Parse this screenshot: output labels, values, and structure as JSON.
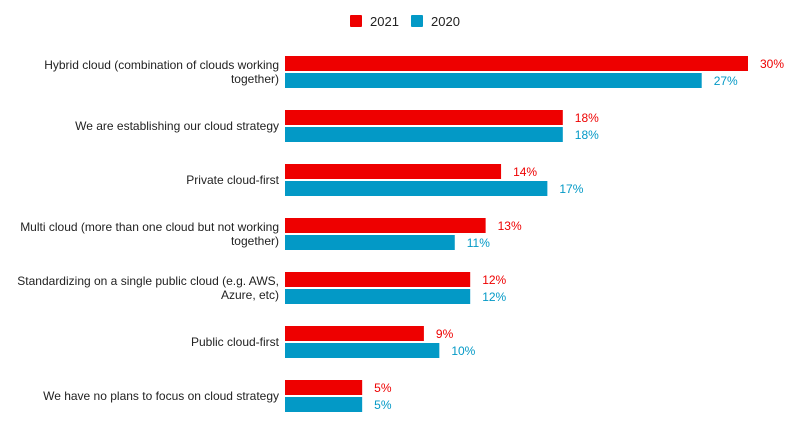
{
  "chart_data": {
    "type": "bar",
    "orientation": "horizontal",
    "title": "",
    "xlabel": "",
    "ylabel": "",
    "xlim": [
      0,
      30
    ],
    "grid": false,
    "legend_position": "top-center",
    "categories": [
      [
        "Hybrid cloud (combination of clouds working",
        "together)"
      ],
      [
        "We are establishing our cloud strategy"
      ],
      [
        "Private cloud-first"
      ],
      [
        "Multi cloud (more than one cloud but not working",
        "together)"
      ],
      [
        "Standardizing on a single public cloud (e.g. AWS,",
        "Azure, etc)"
      ],
      [
        "Public cloud-first"
      ],
      [
        "We have no plans to focus on cloud strategy"
      ]
    ],
    "series": [
      {
        "name": "2021",
        "color": "#EE0000",
        "values": [
          30,
          18,
          14,
          13,
          12,
          9,
          5
        ],
        "labels": [
          "30%",
          "18%",
          "14%",
          "13%",
          "12%",
          "9%",
          "5%"
        ]
      },
      {
        "name": "2020",
        "color": "#0399C6",
        "values": [
          27,
          18,
          17,
          11,
          12,
          10,
          5
        ],
        "labels": [
          "27%",
          "18%",
          "17%",
          "11%",
          "12%",
          "10%",
          "5%"
        ]
      }
    ]
  }
}
